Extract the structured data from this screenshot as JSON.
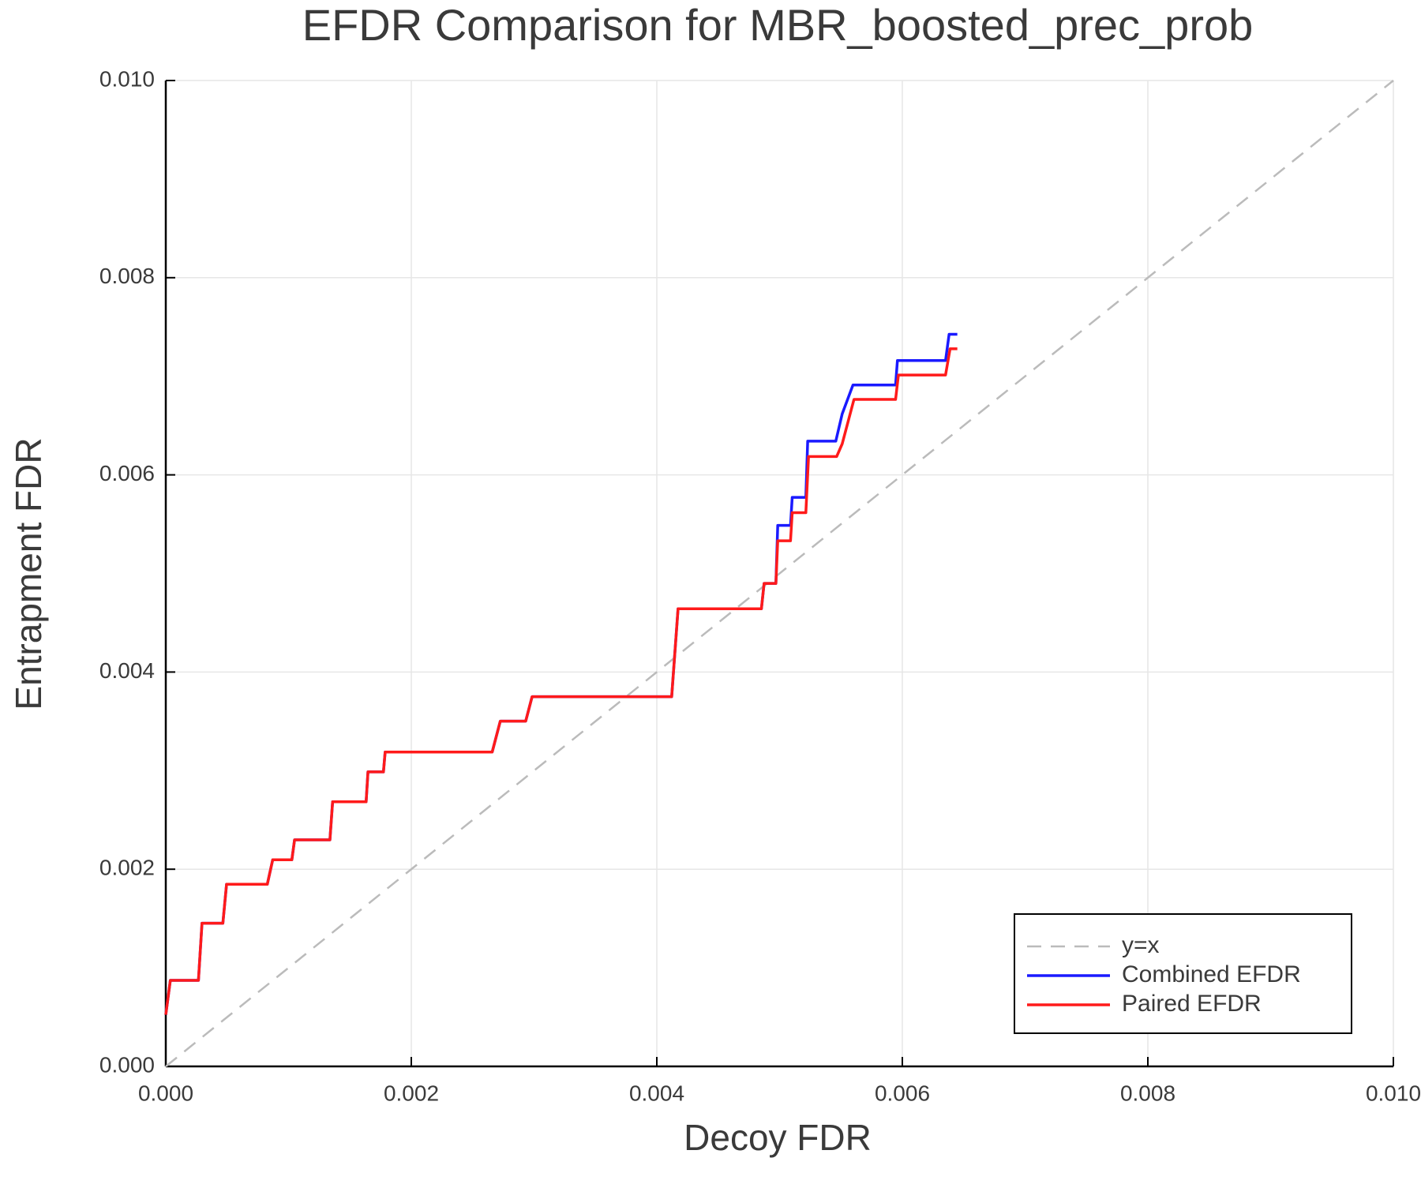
{
  "chart_data": {
    "type": "line",
    "title": "EFDR Comparison for MBR_boosted_prec_prob",
    "x_label": "Decoy FDR",
    "y_label": "Entrapment FDR",
    "xlim": [
      0,
      0.01
    ],
    "ylim": [
      0,
      0.01
    ],
    "xticks": [
      {
        "value": 0,
        "label": "0.000"
      },
      {
        "value": 0.002,
        "label": "0.002"
      },
      {
        "value": 0.004,
        "label": "0.004"
      },
      {
        "value": 0.006,
        "label": "0.006"
      },
      {
        "value": 0.008,
        "label": "0.008"
      },
      {
        "value": 0.01,
        "label": "0.010"
      }
    ],
    "yticks": [
      {
        "value": 0,
        "label": "0.000"
      },
      {
        "value": 0.002,
        "label": "0.002"
      },
      {
        "value": 0.004,
        "label": "0.004"
      },
      {
        "value": 0.006,
        "label": "0.006"
      },
      {
        "value": 0.008,
        "label": "0.008"
      },
      {
        "value": 0.01,
        "label": "0.010"
      }
    ],
    "grid": true,
    "legend_position": "lower-right",
    "series": [
      {
        "name": "y=x",
        "color": "#bbbbbb",
        "dashed": true,
        "x": [
          0,
          0.01
        ],
        "values": [
          0,
          0.01
        ]
      },
      {
        "name": "Combined EFDR",
        "color": "#1a1aff",
        "dashed": false,
        "x": [
          0,
          3.7e-05,
          0.000266,
          0.000295,
          0.000465,
          0.000495,
          0.000827,
          0.000871,
          0.001027,
          0.001049,
          0.001337,
          0.001359,
          0.001632,
          0.001647,
          0.001773,
          0.001787,
          0.002659,
          0.002725,
          0.002932,
          0.002984,
          0.004121,
          0.004173,
          0.004852,
          0.004874,
          0.00497,
          0.004985,
          0.005089,
          0.005103,
          0.005214,
          0.005229,
          0.005458,
          0.00551,
          0.005598,
          0.005945,
          0.00596,
          0.006352,
          0.006381,
          0.006448
        ],
        "values": [
          0.000524,
          0.000873,
          0.000873,
          0.001452,
          0.001452,
          0.001847,
          0.001847,
          0.002096,
          0.002096,
          0.002298,
          0.002298,
          0.002684,
          0.002684,
          0.002987,
          0.002987,
          0.003189,
          0.003189,
          0.003502,
          0.003502,
          0.00375,
          0.00375,
          0.004642,
          0.004642,
          0.004899,
          0.004899,
          0.005487,
          0.005487,
          0.005772,
          0.005772,
          0.006342,
          0.006342,
          0.006618,
          0.006912,
          0.006912,
          0.00716,
          0.00716,
          0.007426,
          0.007426
        ]
      },
      {
        "name": "Paired EFDR",
        "color": "#ff1a1a",
        "dashed": false,
        "x": [
          0,
          3.7e-05,
          0.000266,
          0.000295,
          0.000465,
          0.000495,
          0.000827,
          0.000871,
          0.001027,
          0.001049,
          0.001337,
          0.001359,
          0.001632,
          0.001647,
          0.001773,
          0.001787,
          0.002659,
          0.002725,
          0.002932,
          0.002984,
          0.004121,
          0.004173,
          0.004852,
          0.004874,
          0.00497,
          0.004985,
          0.005089,
          0.005103,
          0.005214,
          0.005236,
          0.005465,
          0.00551,
          0.005606,
          0.005945,
          0.005968,
          0.006352,
          0.006389,
          0.006448
        ],
        "values": [
          0.000524,
          0.000873,
          0.000873,
          0.001452,
          0.001452,
          0.001847,
          0.001847,
          0.002096,
          0.002096,
          0.002298,
          0.002298,
          0.002684,
          0.002684,
          0.002987,
          0.002987,
          0.003189,
          0.003189,
          0.003502,
          0.003502,
          0.00375,
          0.00375,
          0.004642,
          0.004642,
          0.004899,
          0.004899,
          0.005331,
          0.005331,
          0.005616,
          0.005616,
          0.006186,
          0.006186,
          0.006314,
          0.006765,
          0.006765,
          0.007013,
          0.007013,
          0.007279,
          0.007279
        ]
      }
    ]
  }
}
